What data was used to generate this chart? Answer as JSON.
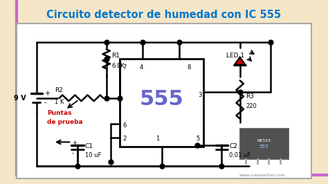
{
  "title": "Circuito detector de humedad con IC 555",
  "title_color": "#0077cc",
  "bg_outer": "#f5e6c8",
  "bg_inner": "#ffffff",
  "border_color": "#cc66cc",
  "circuit_color": "#000000",
  "ic_color": "#6666cc",
  "led_color": "#cc0000",
  "puntas_color": "#cc0000",
  "watermark": "www.viasatelital.com",
  "components": {
    "R1": "6.8K",
    "R2": "1 K",
    "R3": "220",
    "C1": "10 uF",
    "C2": "0.01 uF",
    "LED": "LED 1",
    "IC": "555",
    "V": "9 V"
  }
}
